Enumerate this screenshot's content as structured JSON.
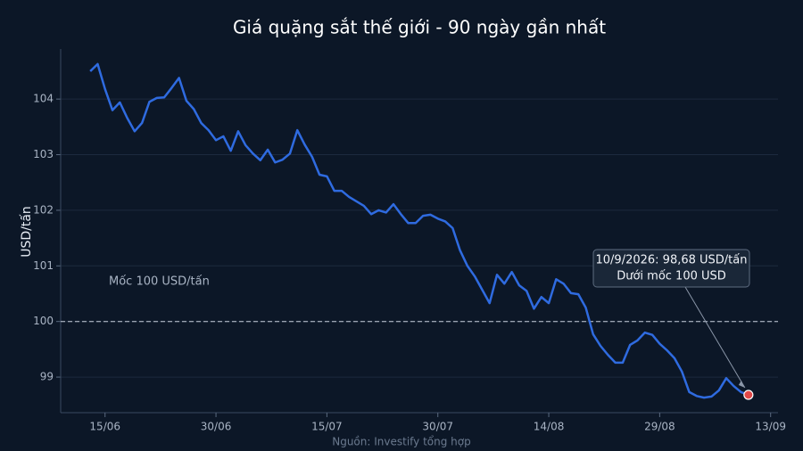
{
  "chart_data": {
    "type": "line",
    "title": "Giá quặng sắt thế giới - 90 ngày gần nhất",
    "y_label": "USD/tấn",
    "source": "Nguồn: Investify tổng hợp",
    "x": [
      "13/06",
      "14/06",
      "15/06",
      "16/06",
      "17/06",
      "18/06",
      "19/06",
      "20/06",
      "21/06",
      "22/06",
      "23/06",
      "24/06",
      "25/06",
      "26/06",
      "27/06",
      "28/06",
      "29/06",
      "30/06",
      "01/07",
      "02/07",
      "03/07",
      "04/07",
      "05/07",
      "06/07",
      "07/07",
      "08/07",
      "09/07",
      "10/07",
      "11/07",
      "12/07",
      "13/07",
      "14/07",
      "15/07",
      "16/07",
      "17/07",
      "18/07",
      "19/07",
      "20/07",
      "21/07",
      "22/07",
      "23/07",
      "24/07",
      "25/07",
      "26/07",
      "27/07",
      "28/07",
      "29/07",
      "30/07",
      "31/07",
      "01/08",
      "02/08",
      "03/08",
      "04/08",
      "05/08",
      "06/08",
      "07/08",
      "08/08",
      "09/08",
      "10/08",
      "11/08",
      "12/08",
      "13/08",
      "14/08",
      "15/08",
      "16/08",
      "17/08",
      "18/08",
      "19/08",
      "20/08",
      "21/08",
      "22/08",
      "23/08",
      "24/08",
      "25/08",
      "26/08",
      "27/08",
      "28/08",
      "29/08",
      "30/08",
      "31/08",
      "01/09",
      "02/09",
      "03/09",
      "04/09",
      "05/09",
      "06/09",
      "07/09",
      "08/09",
      "09/09",
      "10/09"
    ],
    "series": [
      {
        "color": "#2f6be0",
        "values": [
          104.5,
          104.63,
          104.18,
          103.8,
          103.94,
          103.66,
          103.42,
          103.57,
          103.95,
          104.02,
          104.03,
          104.2,
          104.38,
          103.97,
          103.82,
          103.57,
          103.44,
          103.26,
          103.33,
          103.07,
          103.42,
          103.17,
          103.02,
          102.9,
          103.09,
          102.86,
          102.91,
          103.02,
          103.44,
          103.18,
          102.96,
          102.64,
          102.61,
          102.35,
          102.35,
          102.24,
          102.16,
          102.08,
          101.93,
          102.0,
          101.96,
          102.11,
          101.93,
          101.77,
          101.77,
          101.9,
          101.92,
          101.85,
          101.8,
          101.68,
          101.28,
          101.0,
          100.81,
          100.57,
          100.33,
          100.84,
          100.68,
          100.89,
          100.65,
          100.55,
          100.23,
          100.44,
          100.33,
          100.76,
          100.68,
          100.51,
          100.49,
          100.25,
          99.77,
          99.56,
          99.4,
          99.26,
          99.26,
          99.58,
          99.66,
          99.8,
          99.76,
          99.6,
          99.48,
          99.34,
          99.1,
          98.73,
          98.66,
          98.63,
          98.65,
          98.76,
          98.98,
          98.84,
          98.73,
          98.68
        ]
      }
    ],
    "xlim": [
      "09/06",
      "14/09"
    ],
    "xticks": [
      "15/06",
      "30/06",
      "15/07",
      "30/07",
      "14/08",
      "29/08",
      "13/09"
    ],
    "ylim": [
      98.36,
      104.9
    ],
    "yticks": [
      99,
      100,
      101,
      102,
      103,
      104
    ],
    "grid": true,
    "reference_line": {
      "value": 100,
      "label": "Mốc 100 USD/tấn"
    },
    "annotation": {
      "lines": [
        "10/9/2026: 98,68 USD/tấn",
        "Dưới mốc 100 USD"
      ],
      "marker_color": "#e04848"
    }
  }
}
